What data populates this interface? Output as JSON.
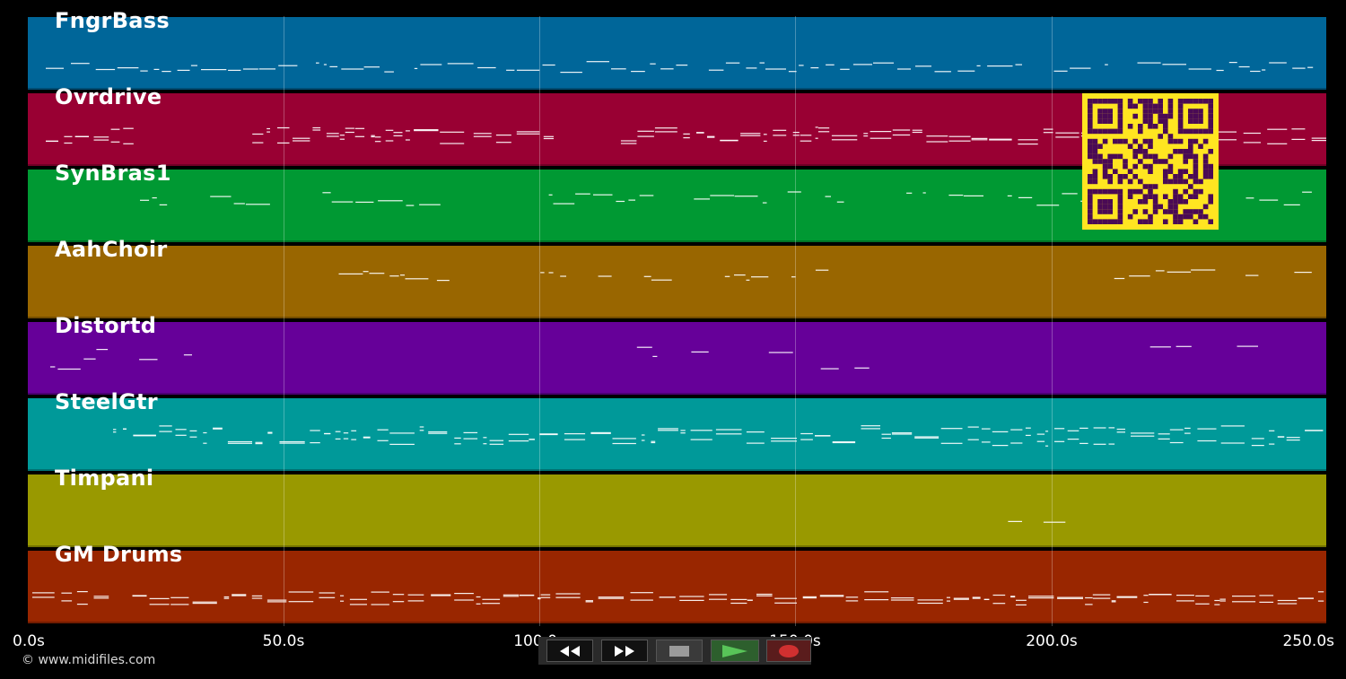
{
  "tracks": [
    {
      "name": "FngrBass",
      "color": "#006699"
    },
    {
      "name": "Ovrdrive",
      "color": "#990033"
    },
    {
      "name": "SynBras1",
      "color": "#009933"
    },
    {
      "name": "AahChoir",
      "color": "#996600"
    },
    {
      "name": "Distortd",
      "color": "#660099"
    },
    {
      "name": "SteelGtr",
      "color": "#009999"
    },
    {
      "name": "Timpani",
      "color": "#999900"
    },
    {
      "name": "GM Drums",
      "color": "#992600"
    }
  ],
  "timeline": {
    "ticks": [
      "0.0s",
      "50.0s",
      "100.0s",
      "150.0s",
      "200.0s",
      "250.0s"
    ],
    "tick_values": [
      0,
      50,
      100,
      150,
      200,
      250
    ],
    "max_seconds": 253.5
  },
  "copyright": "© www.midifiles.com",
  "transport": [
    {
      "name": "rewind-button",
      "icon": "rewind-icon"
    },
    {
      "name": "fast-forward-button",
      "icon": "fast-forward-icon"
    },
    {
      "name": "stop-button",
      "icon": "stop-icon"
    },
    {
      "name": "play-button",
      "icon": "play-icon"
    },
    {
      "name": "record-button",
      "icon": "record-icon"
    }
  ],
  "colors": {
    "background": "#000000",
    "qr_fg": "#4a0a55",
    "qr_bg": "#ffe521",
    "play": "#3a9a3a",
    "record": "#b0202a"
  }
}
